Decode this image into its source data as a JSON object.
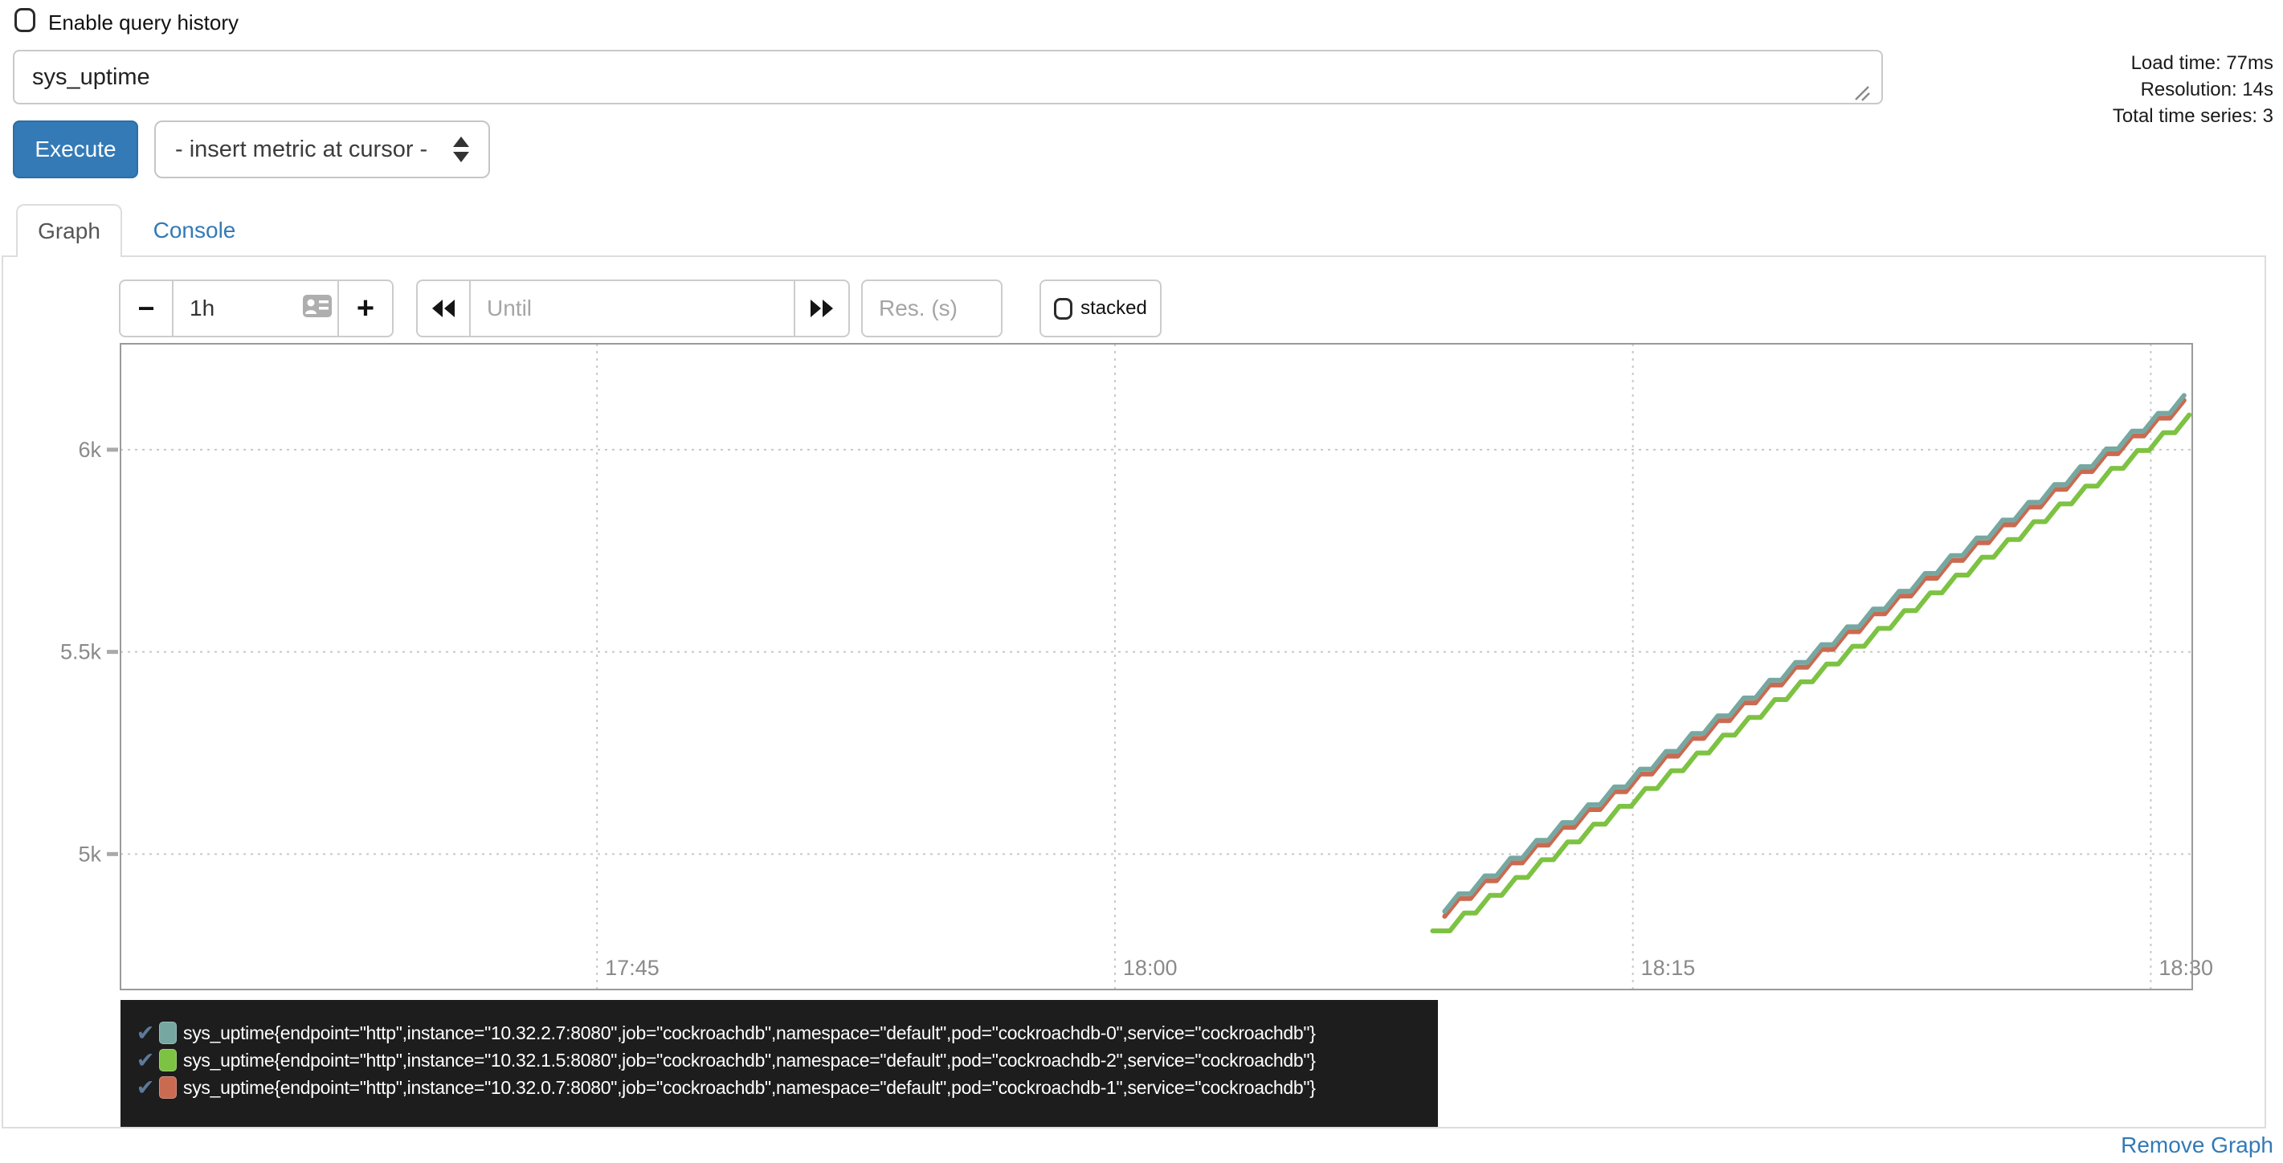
{
  "toolbar": {
    "enable_history_label": "Enable query history",
    "execute_label": "Execute",
    "insert_metric_label": "- insert metric at cursor -"
  },
  "query": {
    "value": "sys_uptime"
  },
  "stats": {
    "load_time": "Load time: 77ms",
    "resolution": "Resolution: 14s",
    "total_series": "Total time series: 3"
  },
  "tabs": {
    "graph_label": "Graph",
    "console_label": "Console"
  },
  "graph_controls": {
    "minus_label": "−",
    "duration_value": "1h",
    "plus_label": "+",
    "until_placeholder": "Until",
    "res_placeholder": "Res. (s)",
    "stacked_label": "stacked"
  },
  "footer": {
    "remove_graph_label": "Remove Graph"
  },
  "icons": {
    "checkmark_glyph": "✔",
    "history_checkbox": "checkbox-unchecked",
    "stacked_checkbox": "checkbox-unchecked",
    "autofill_contact_icon": "contact-card",
    "rewind_icon": "double-left-arrow",
    "forward_icon": "double-right-arrow",
    "select_arrows_icon": "up-down-arrows",
    "resize_grip_icon": "resize-grip"
  },
  "colors": {
    "accent_blue": "#337ab7",
    "legend_bg": "#1d1d1d",
    "grid": "#c8c8c8",
    "axis": "#9a9a9a",
    "tick_label": "#8a8a8a",
    "series_teal": "#76A8A1",
    "series_green": "#7DC243",
    "series_red": "#C96A51",
    "legend_check_blue": "#5c7a9b"
  },
  "chart_data": {
    "type": "line",
    "x_unit": "time of day (HH:MM)",
    "y_unit": "sys_uptime (seconds)",
    "grid": "dotted",
    "stacked": false,
    "legend_position": "bottom-left",
    "x_domain_minutes_since_1730": [
      1.2,
      61.2
    ],
    "y_domain": [
      4665,
      6262
    ],
    "x_ticks": [
      {
        "t": 15,
        "label": "17:45"
      },
      {
        "t": 30,
        "label": "18:00"
      },
      {
        "t": 45,
        "label": "18:15"
      },
      {
        "t": 60,
        "label": "18:30"
      }
    ],
    "y_ticks": [
      {
        "v": 5000,
        "label": "5k"
      },
      {
        "v": 5500,
        "label": "5.5k"
      },
      {
        "v": 6000,
        "label": "6k"
      }
    ],
    "series": [
      {
        "name": "sys_uptime{endpoint=\"http\",instance=\"10.32.2.7:8080\",job=\"cockroachdb\",namespace=\"default\",pod=\"cockroachdb-0\",service=\"cockroachdb\"}",
        "color": "#76A8A1",
        "z": 2,
        "t_start": 39.55,
        "t_end": 61.2,
        "v_start": 4858,
        "v_end": 6134,
        "step_min": 0.75,
        "step_rise": 44,
        "lead_flat_min": 0
      },
      {
        "name": "sys_uptime{endpoint=\"http\",instance=\"10.32.1.5:8080\",job=\"cockroachdb\",namespace=\"default\",pod=\"cockroachdb-2\",service=\"cockroachdb\"}",
        "color": "#7DC243",
        "z": 0,
        "t_start": 39.7,
        "t_end": 61.2,
        "v_start": 4810,
        "v_end": 6086,
        "step_min": 0.75,
        "step_rise": 44,
        "lead_flat_min": 0.5
      },
      {
        "name": "sys_uptime{endpoint=\"http\",instance=\"10.32.0.7:8080\",job=\"cockroachdb\",namespace=\"default\",pod=\"cockroachdb-1\",service=\"cockroachdb\"}",
        "color": "#C96A51",
        "z": 1,
        "t_start": 39.55,
        "t_end": 61.2,
        "v_start": 4846,
        "v_end": 6122,
        "step_min": 0.75,
        "step_rise": 44,
        "lead_flat_min": 0
      }
    ]
  }
}
